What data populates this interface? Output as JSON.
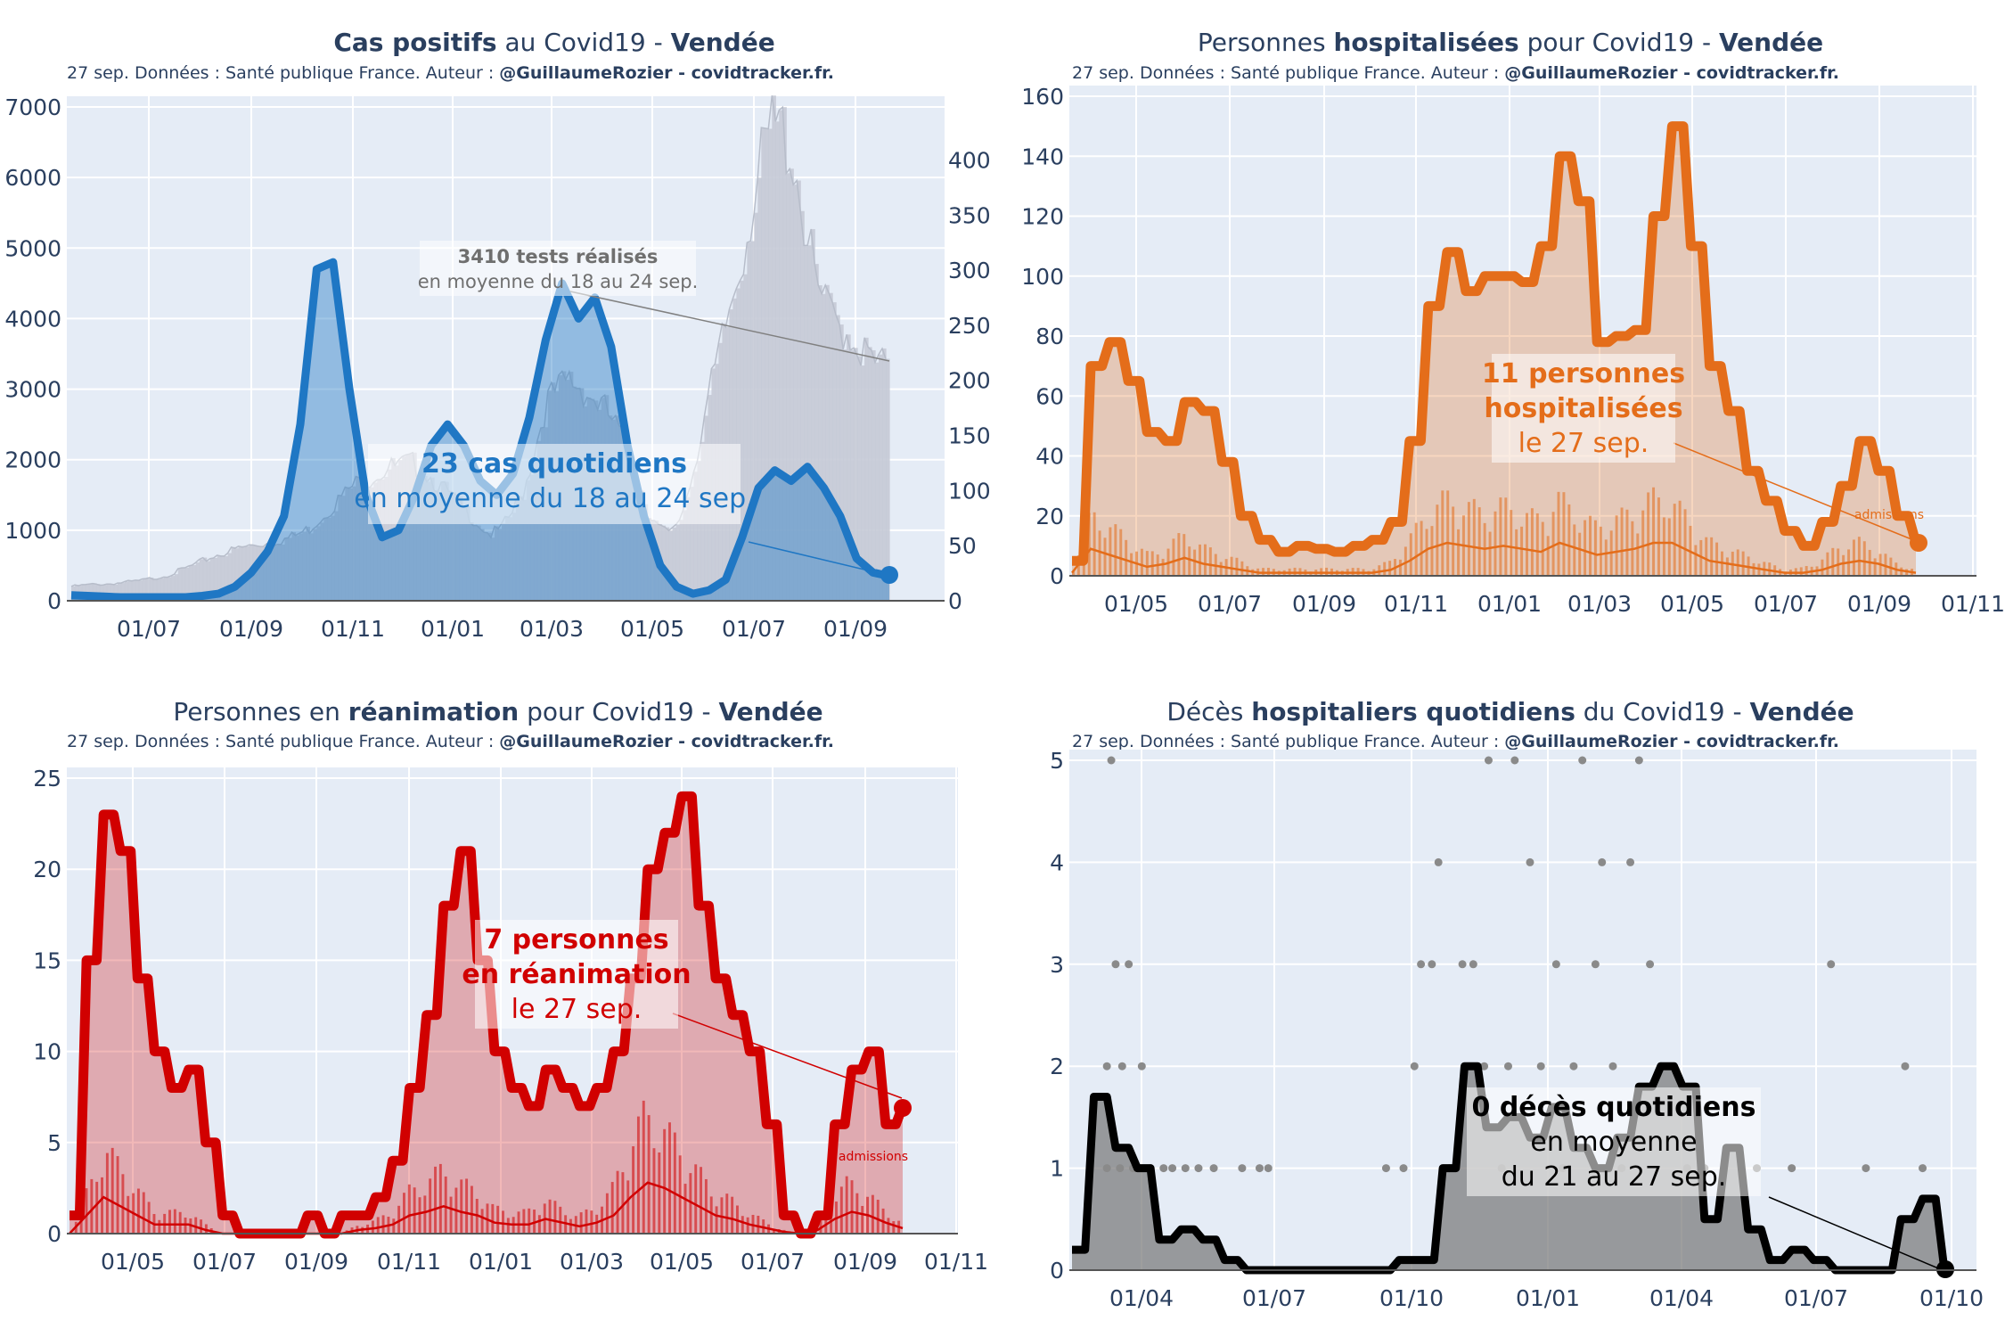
{
  "source_prefix": "27 sep. Données : Santé publique France. Auteur : ",
  "source_author": "@GuillaumeRozier - covidtracker.fr.",
  "chart_data": [
    {
      "id": "cases",
      "type": "area",
      "title_parts": [
        [
          "Cas positifs",
          true
        ],
        [
          " au Covid19 - ",
          false
        ],
        [
          "Vendée",
          true
        ]
      ],
      "color": "#1f77c4",
      "x_ticks": [
        "01/07",
        "01/09",
        "01/11",
        "01/01",
        "01/03",
        "01/05",
        "01/07",
        "01/09"
      ],
      "y_ticks": [
        "0",
        "1000",
        "2000",
        "3000",
        "4000",
        "5000",
        "6000",
        "7000"
      ],
      "y2_ticks": [
        "0",
        "50",
        "100",
        "150",
        "200",
        "250",
        "300",
        "350",
        "400"
      ],
      "ylim": [
        0,
        7000
      ],
      "y2lim": [
        0,
        440
      ],
      "series": [
        {
          "name": "tests réalisés (axe droit)",
          "color": "#c5cad6",
          "values": [
            13,
            14,
            15,
            15,
            16,
            17,
            18,
            20,
            22,
            25,
            29,
            33,
            38,
            42,
            45,
            48,
            50,
            52,
            54,
            56,
            60,
            65,
            75,
            85,
            95,
            105,
            110,
            115,
            120,
            122,
            125,
            120,
            110,
            100,
            90,
            80,
            70,
            60,
            65,
            80,
            100,
            140,
            180,
            190,
            200,
            195,
            185,
            175,
            160,
            140,
            110,
            80,
            65,
            60,
            80,
            120,
            170,
            210,
            255,
            300,
            350,
            395,
            430,
            425,
            395,
            330,
            280,
            260,
            250,
            240,
            225,
            215,
            212
          ]
        },
        {
          "name": "cas quotidiens (moyenne 7 j)",
          "values": [
            80,
            70,
            60,
            50,
            50,
            50,
            50,
            50,
            70,
            100,
            200,
            400,
            700,
            1200,
            2500,
            4700,
            4800,
            3000,
            1500,
            900,
            1000,
            1500,
            2200,
            2500,
            2200,
            1700,
            1500,
            1800,
            2600,
            3700,
            4500,
            4000,
            4300,
            3600,
            2200,
            1200,
            500,
            200,
            100,
            150,
            300,
            900,
            1600,
            1850,
            1700,
            1900,
            1600,
            1200,
            600,
            400,
            350
          ]
        }
      ],
      "label_bold": "23 cas quotidiens",
      "label_lines": [
        "en moyenne du 18 au 24 sep."
      ],
      "label2_bold": "3410 tests réalisés",
      "label2_lines": [
        "en moyenne du 18 au 24 sep."
      ]
    },
    {
      "id": "hosp",
      "type": "area",
      "title_parts": [
        [
          "Personnes ",
          false
        ],
        [
          "hospitalisées",
          true
        ],
        [
          " pour Covid19 - ",
          false
        ],
        [
          "Vendée",
          true
        ]
      ],
      "color": "#e46d1a",
      "x_ticks": [
        "01/05",
        "01/07",
        "01/09",
        "01/11",
        "01/01",
        "01/03",
        "01/05",
        "01/07",
        "01/09",
        "01/11"
      ],
      "y_ticks": [
        "0",
        "20",
        "40",
        "60",
        "80",
        "100",
        "120",
        "140",
        "160"
      ],
      "ylim": [
        0,
        160
      ],
      "series": [
        {
          "name": "hospitalisations",
          "values": [
            5,
            70,
            78,
            65,
            48,
            45,
            58,
            55,
            38,
            20,
            12,
            8,
            10,
            9,
            8,
            10,
            12,
            18,
            45,
            90,
            108,
            95,
            100,
            100,
            98,
            110,
            140,
            125,
            78,
            80,
            82,
            120,
            150,
            110,
            70,
            55,
            35,
            25,
            15,
            10,
            18,
            30,
            45,
            35,
            20,
            11
          ]
        },
        {
          "name": "admissions",
          "values": [
            1,
            9,
            7,
            5,
            3,
            4,
            6,
            4,
            3,
            2,
            1,
            1,
            1,
            1,
            1,
            1,
            1,
            2,
            5,
            9,
            11,
            10,
            9,
            10,
            9,
            8,
            11,
            9,
            7,
            8,
            9,
            11,
            11,
            8,
            5,
            4,
            3,
            2,
            1,
            1,
            2,
            4,
            5,
            4,
            2,
            1
          ]
        }
      ],
      "label_bold_lines": [
        "11 personnes",
        "hospitalisées"
      ],
      "label_lines": [
        "le 27 sep."
      ],
      "small_label": "admissions"
    },
    {
      "id": "rea",
      "type": "area",
      "title_parts": [
        [
          "Personnes en ",
          false
        ],
        [
          "réanimation",
          true
        ],
        [
          " pour Covid19 - ",
          false
        ],
        [
          "Vendée",
          true
        ]
      ],
      "color": "#d10000",
      "x_ticks": [
        "01/05",
        "01/07",
        "01/09",
        "01/11",
        "01/01",
        "01/03",
        "01/05",
        "01/07",
        "01/09",
        "01/11"
      ],
      "y_ticks": [
        "0",
        "5",
        "10",
        "15",
        "20",
        "25"
      ],
      "ylim": [
        0,
        25
      ],
      "series": [
        {
          "name": "réanimation",
          "values": [
            1,
            15,
            23,
            21,
            14,
            10,
            8,
            9,
            5,
            1,
            0,
            0,
            0,
            0,
            1,
            0,
            1,
            1,
            2,
            4,
            8,
            12,
            18,
            21,
            15,
            10,
            8,
            7,
            9,
            8,
            7,
            8,
            10,
            14,
            20,
            22,
            24,
            18,
            14,
            12,
            10,
            6,
            1,
            0,
            1,
            6,
            9,
            10,
            6,
            7
          ]
        },
        {
          "name": "admissions",
          "values": [
            0,
            1,
            2,
            1.5,
            1,
            0.5,
            0.5,
            0.5,
            0.2,
            0,
            0,
            0,
            0,
            0,
            0,
            0,
            0,
            0.2,
            0.3,
            0.5,
            1,
            1.2,
            1.5,
            1.2,
            1,
            0.6,
            0.5,
            0.5,
            0.8,
            0.6,
            0.4,
            0.6,
            1,
            2,
            2.8,
            2.5,
            2,
            1.5,
            1,
            0.8,
            0.5,
            0.3,
            0.1,
            0,
            0.2,
            0.8,
            1.2,
            1,
            0.6,
            0.3
          ]
        }
      ],
      "label_bold_lines": [
        "7 personnes",
        "en réanimation"
      ],
      "label_lines": [
        "le 27 sep."
      ],
      "small_label": "admissions"
    },
    {
      "id": "deaths",
      "type": "area",
      "title_parts": [
        [
          "Décès ",
          false
        ],
        [
          "hospitaliers quotidiens",
          true
        ],
        [
          " du Covid19 - ",
          false
        ],
        [
          "Vendée",
          true
        ]
      ],
      "color": "#000000",
      "x_ticks": [
        "01/04",
        "01/07",
        "01/10",
        "01/01",
        "01/04",
        "01/07",
        "01/10"
      ],
      "y_ticks": [
        "0",
        "1",
        "2",
        "3",
        "4",
        "5"
      ],
      "ylim": [
        0,
        5
      ],
      "series": [
        {
          "name": "décès (moyenne 7 j)",
          "values": [
            0.2,
            1.7,
            1.2,
            1.0,
            0.3,
            0.4,
            0.3,
            0.1,
            0,
            0,
            0,
            0,
            0,
            0,
            0,
            0.1,
            0.1,
            1.0,
            2.0,
            1.4,
            1.5,
            1.3,
            1.6,
            1.2,
            1.0,
            1.3,
            1.8,
            2.0,
            1.8,
            0.5,
            1.2,
            0.4,
            0.1,
            0.2,
            0.1,
            0,
            0,
            0,
            0.5,
            0.7,
            0
          ]
        },
        {
          "name": "décès quotidiens",
          "type": "scatter",
          "color": "#888888",
          "points": [
            [
              1.6,
              1
            ],
            [
              1.6,
              2
            ],
            [
              1.8,
              5
            ],
            [
              2.0,
              3
            ],
            [
              2.2,
              1
            ],
            [
              2.3,
              2
            ],
            [
              2.6,
              3
            ],
            [
              2.8,
              1
            ],
            [
              3.2,
              2
            ],
            [
              3.6,
              1
            ],
            [
              4.2,
              1
            ],
            [
              4.6,
              1
            ],
            [
              5.2,
              1
            ],
            [
              5.8,
              1
            ],
            [
              6.5,
              1
            ],
            [
              7.8,
              1
            ],
            [
              8.6,
              1
            ],
            [
              9.0,
              1
            ],
            [
              14.4,
              1
            ],
            [
              15.2,
              1
            ],
            [
              15.7,
              2
            ],
            [
              16.0,
              3
            ],
            [
              16.5,
              3
            ],
            [
              16.8,
              4
            ],
            [
              17.3,
              1
            ],
            [
              17.9,
              3
            ],
            [
              18.4,
              3
            ],
            [
              18.9,
              2
            ],
            [
              19.1,
              5
            ],
            [
              19.7,
              1
            ],
            [
              20.0,
              2
            ],
            [
              20.3,
              5
            ],
            [
              21.0,
              4
            ],
            [
              21.5,
              2
            ],
            [
              22.2,
              3
            ],
            [
              22.5,
              1
            ],
            [
              23.0,
              2
            ],
            [
              23.4,
              5
            ],
            [
              24.0,
              3
            ],
            [
              24.3,
              4
            ],
            [
              24.8,
              2
            ],
            [
              25.2,
              1
            ],
            [
              25.6,
              4
            ],
            [
              26.0,
              5
            ],
            [
              26.5,
              3
            ],
            [
              27.0,
              2
            ],
            [
              28.2,
              1
            ],
            [
              29.0,
              1
            ],
            [
              31.4,
              1
            ],
            [
              33.0,
              1
            ],
            [
              34.8,
              3
            ],
            [
              36.4,
              1
            ],
            [
              38.2,
              2
            ],
            [
              39.0,
              1
            ]
          ]
        }
      ],
      "label_bold_lines": [
        "0 décès quotidiens"
      ],
      "label_lines": [
        "en moyenne",
        "du 21 au 27 sep."
      ]
    }
  ]
}
